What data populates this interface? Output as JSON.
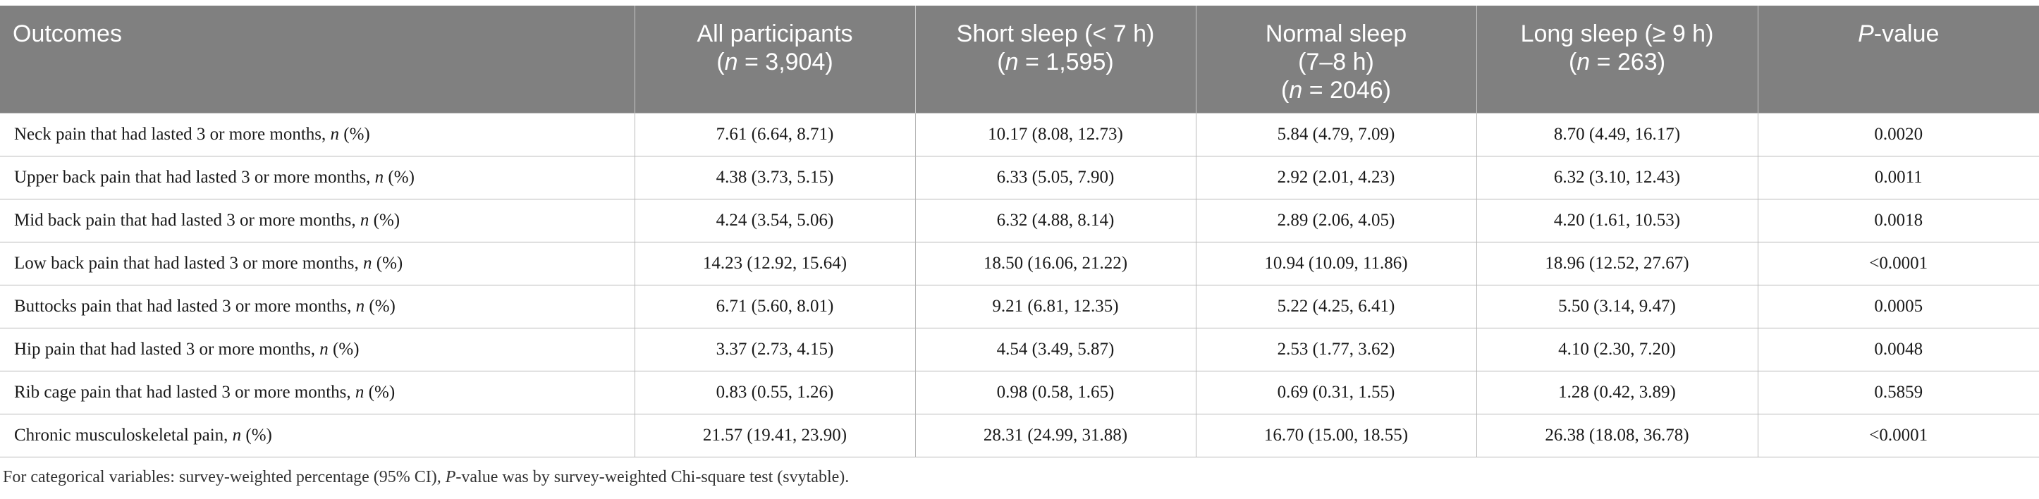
{
  "table": {
    "header": {
      "outcomes": "Outcomes",
      "all_label": "All participants",
      "all_n": "3,904",
      "short_label": "Short sleep (< 7 h)",
      "short_n": "1,595",
      "normal_label": "Normal sleep",
      "normal_range": "(7–8 h)",
      "normal_n": "2046",
      "long_label": "Long sleep (≥ 9 h)",
      "long_n": "263",
      "p_letter": "P",
      "p_rest": "-value",
      "n_letter": "n",
      "n_eq": " = "
    },
    "rows": [
      {
        "label": "Neck pain that had lasted 3 or more months, ",
        "all": "7.61 (6.64, 8.71)",
        "short": "10.17 (8.08, 12.73)",
        "normal": "5.84 (4.79, 7.09)",
        "long": "8.70 (4.49, 16.17)",
        "p": "0.0020"
      },
      {
        "label": "Upper back pain that had lasted 3 or more months, ",
        "all": "4.38 (3.73, 5.15)",
        "short": "6.33 (5.05, 7.90)",
        "normal": "2.92 (2.01, 4.23)",
        "long": "6.32 (3.10, 12.43)",
        "p": "0.0011"
      },
      {
        "label": "Mid back pain that had lasted 3 or more months, ",
        "all": "4.24 (3.54, 5.06)",
        "short": "6.32 (4.88, 8.14)",
        "normal": "2.89 (2.06, 4.05)",
        "long": "4.20 (1.61, 10.53)",
        "p": "0.0018"
      },
      {
        "label": "Low back pain that had lasted 3 or more months, ",
        "all": "14.23 (12.92, 15.64)",
        "short": "18.50 (16.06, 21.22)",
        "normal": "10.94 (10.09, 11.86)",
        "long": "18.96 (12.52, 27.67)",
        "p": "<0.0001"
      },
      {
        "label": "Buttocks pain that had lasted 3 or more months, ",
        "all": "6.71 (5.60, 8.01)",
        "short": "9.21 (6.81, 12.35)",
        "normal": "5.22 (4.25, 6.41)",
        "long": "5.50 (3.14, 9.47)",
        "p": "0.0005"
      },
      {
        "label": "Hip pain that had lasted 3 or more months, ",
        "all": "3.37 (2.73, 4.15)",
        "short": "4.54 (3.49, 5.87)",
        "normal": "2.53 (1.77, 3.62)",
        "long": "4.10 (2.30, 7.20)",
        "p": "0.0048"
      },
      {
        "label": "Rib cage pain that had lasted 3 or more months, ",
        "all": "0.83 (0.55, 1.26)",
        "short": "0.98 (0.58, 1.65)",
        "normal": "0.69 (0.31, 1.55)",
        "long": "1.28 (0.42, 3.89)",
        "p": "0.5859"
      },
      {
        "label": "Chronic musculoskeletal pain, ",
        "all": "21.57 (19.41, 23.90)",
        "short": "28.31 (24.99, 31.88)",
        "normal": "16.70 (15.00, 18.55)",
        "long": "26.38 (18.08, 36.78)",
        "p": "<0.0001"
      }
    ],
    "row_unit_italic": "n",
    "row_unit_rest": " (%)"
  },
  "footnote": {
    "part1": "For categorical variables: survey-weighted percentage (95% CI), ",
    "p_letter": "P",
    "part2": "-value was by survey-weighted Chi-square test (svytable)."
  }
}
